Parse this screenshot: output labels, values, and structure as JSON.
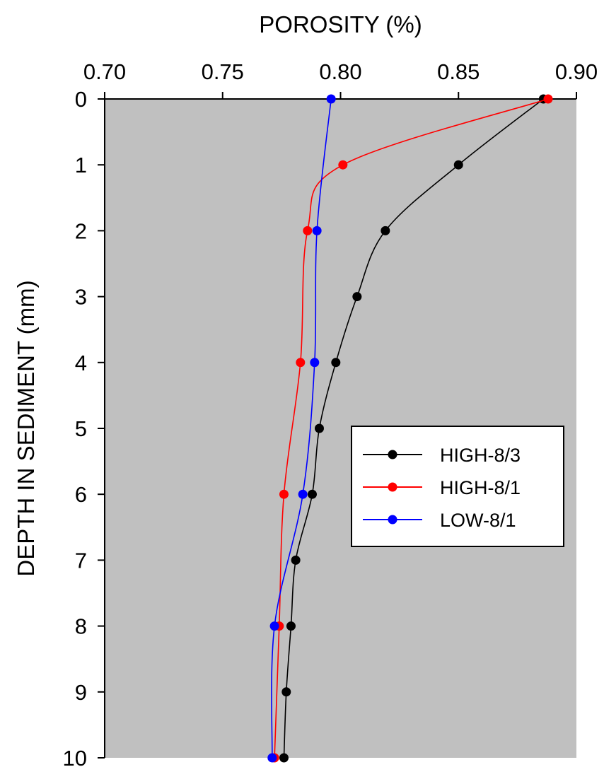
{
  "chart_data": {
    "type": "line",
    "xlabel": "POROSITY (%)",
    "ylabel": "DEPTH IN SEDIMENT (mm)",
    "xlim": [
      0.7,
      0.9
    ],
    "ylim": [
      0,
      10
    ],
    "y_inverted": true,
    "x_axis_position": "top",
    "grid": false,
    "background": "#c0c0c0",
    "x_ticks": [
      "0.70",
      "0.75",
      "0.80",
      "0.85",
      "0.90"
    ],
    "y_ticks": [
      "0",
      "1",
      "2",
      "3",
      "4",
      "5",
      "6",
      "7",
      "8",
      "9",
      "10"
    ],
    "legend": {
      "position": "right-middle"
    },
    "series": [
      {
        "name": "HIGH-8/3",
        "color": "#000000",
        "points": [
          [
            0.886,
            0
          ],
          [
            0.85,
            1
          ],
          [
            0.819,
            2
          ],
          [
            0.807,
            3
          ],
          [
            0.798,
            4
          ],
          [
            0.791,
            5
          ],
          [
            0.788,
            6
          ],
          [
            0.781,
            7
          ],
          [
            0.779,
            8
          ],
          [
            0.777,
            9
          ],
          [
            0.776,
            10
          ]
        ]
      },
      {
        "name": "HIGH-8/1",
        "color": "#ff0000",
        "points": [
          [
            0.888,
            0
          ],
          [
            0.801,
            1
          ],
          [
            0.786,
            2
          ],
          [
            0.783,
            4
          ],
          [
            0.776,
            6
          ],
          [
            0.774,
            8
          ],
          [
            0.772,
            10
          ]
        ]
      },
      {
        "name": "LOW-8/1",
        "color": "#0000ff",
        "points": [
          [
            0.796,
            0
          ],
          [
            0.79,
            2
          ],
          [
            0.789,
            4
          ],
          [
            0.784,
            6
          ],
          [
            0.772,
            8
          ],
          [
            0.771,
            10
          ]
        ]
      }
    ]
  }
}
